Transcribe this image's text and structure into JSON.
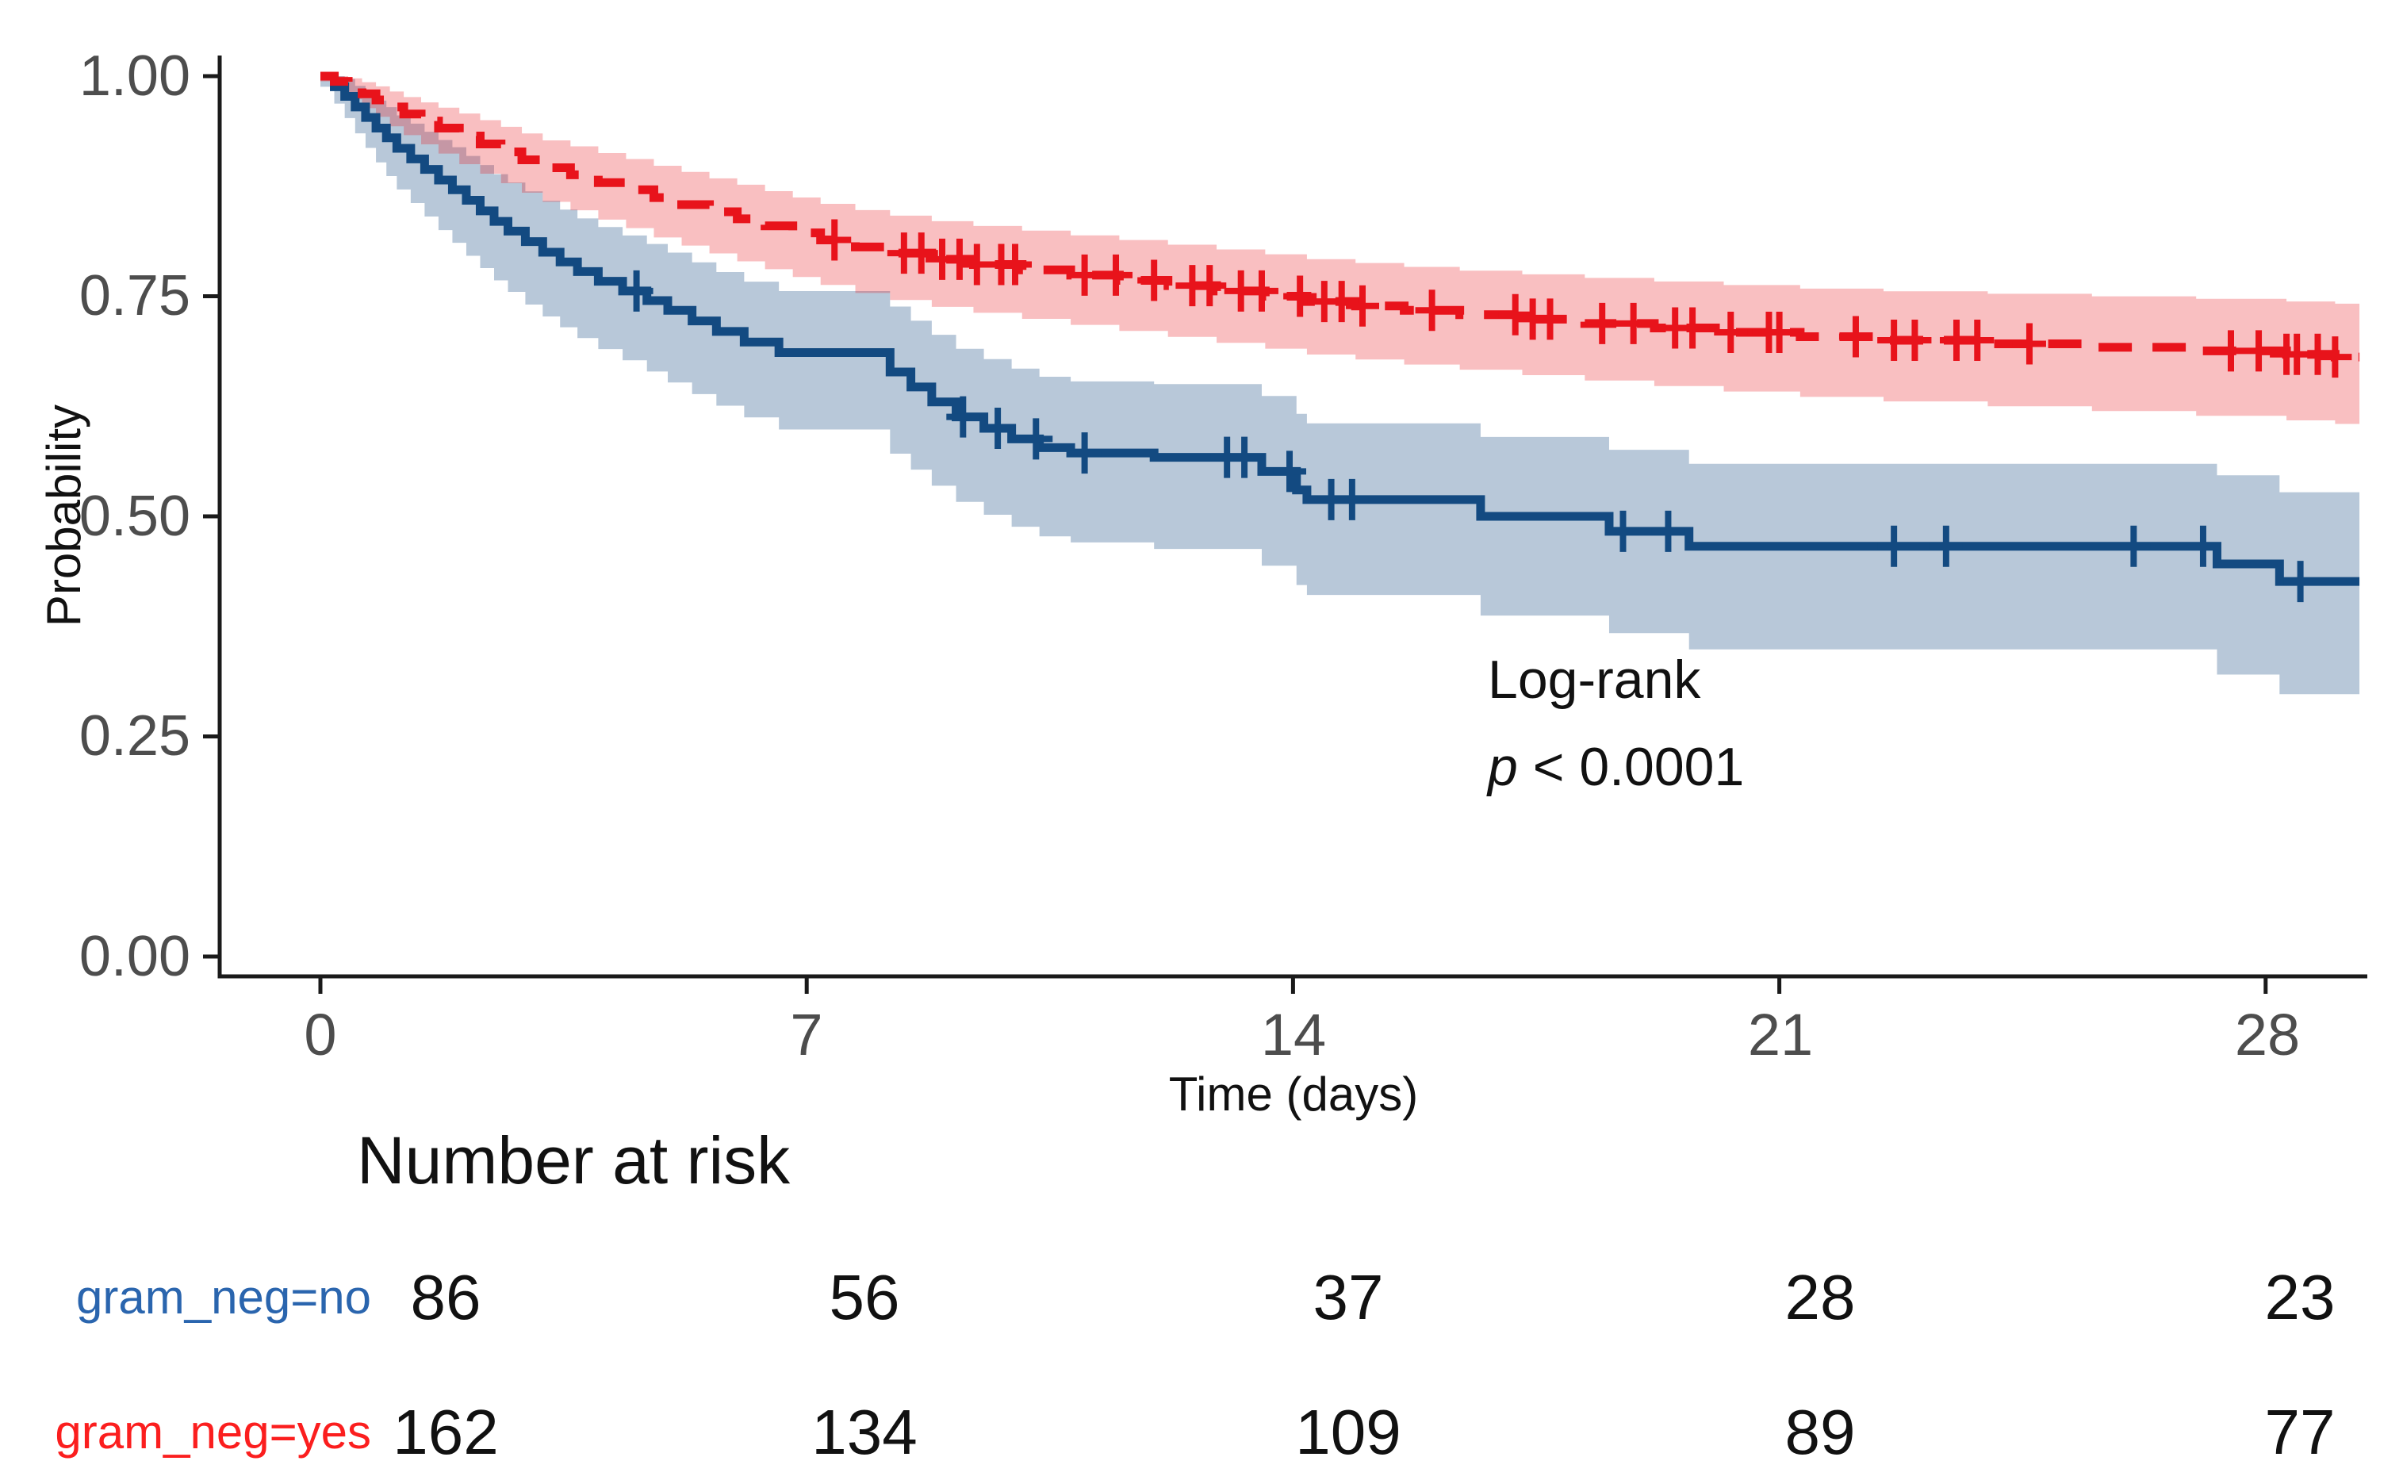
{
  "colors": {
    "background": "#ffffff",
    "axis": "#1a1a1a",
    "tick_label": "#4d4d4d",
    "blue_line": "#134a81",
    "red_line": "#e8131b",
    "blue_band": "rgba(19,74,129,0.30)",
    "red_band": "rgba(232,19,27,0.27)",
    "blue_label": "#2a65ae",
    "red_label": "#fb1e1e"
  },
  "chart_data": {
    "type": "line",
    "subtype": "kaplan-meier-step",
    "title": "",
    "xlabel": "Time (days)",
    "ylabel": "Probability",
    "xlim": [
      0,
      29.35
    ],
    "ylim": [
      0,
      1
    ],
    "grid": false,
    "legend_position": "none",
    "xticks": [
      0,
      7,
      14,
      21,
      28
    ],
    "yticks": [
      1.0,
      0.75,
      0.5,
      0.25,
      0.0
    ],
    "ytick_labels": [
      "1.00",
      "0.75",
      "0.50",
      "0.25",
      "0.00"
    ],
    "annotation": {
      "test_label": "Log-rank",
      "p_prefix": "p",
      "p_value": " < 0.0001"
    },
    "series": [
      {
        "name": "gram_neg=no",
        "line_style": "solid",
        "line_color": "#134a81",
        "band_color": "rgba(19,74,129,0.30)",
        "label_color": "#2a65ae",
        "steps": [
          [
            0,
            1.0
          ],
          [
            0.2,
            0.988
          ],
          [
            0.35,
            0.977
          ],
          [
            0.5,
            0.965
          ],
          [
            0.65,
            0.953
          ],
          [
            0.8,
            0.941
          ],
          [
            0.95,
            0.93
          ],
          [
            1.1,
            0.918
          ],
          [
            1.3,
            0.906
          ],
          [
            1.5,
            0.894
          ],
          [
            1.7,
            0.882
          ],
          [
            1.9,
            0.871
          ],
          [
            2.1,
            0.859
          ],
          [
            2.3,
            0.847
          ],
          [
            2.5,
            0.835
          ],
          [
            2.7,
            0.824
          ],
          [
            2.95,
            0.812
          ],
          [
            3.2,
            0.8
          ],
          [
            3.45,
            0.789
          ],
          [
            3.7,
            0.778
          ],
          [
            4.0,
            0.767
          ],
          [
            4.35,
            0.756
          ],
          [
            4.7,
            0.745
          ],
          [
            5.0,
            0.734
          ],
          [
            5.35,
            0.722
          ],
          [
            5.7,
            0.71
          ],
          [
            6.1,
            0.698
          ],
          [
            6.6,
            0.686
          ],
          [
            8.2,
            0.664
          ],
          [
            8.5,
            0.647
          ],
          [
            8.8,
            0.63
          ],
          [
            9.15,
            0.613
          ],
          [
            9.55,
            0.6
          ],
          [
            9.95,
            0.588
          ],
          [
            10.35,
            0.578
          ],
          [
            10.8,
            0.572
          ],
          [
            12.0,
            0.567
          ],
          [
            13.55,
            0.551
          ],
          [
            14.05,
            0.53
          ],
          [
            14.2,
            0.519
          ],
          [
            16.7,
            0.5
          ],
          [
            18.55,
            0.483
          ],
          [
            19.7,
            0.466
          ],
          [
            27.3,
            0.446
          ],
          [
            28.2,
            0.426
          ]
        ],
        "censor_times": [
          4.55,
          9.25,
          9.75,
          10.3,
          11.0,
          13.05,
          13.3,
          13.95,
          14.55,
          14.85,
          18.75,
          19.4,
          22.65,
          23.4,
          26.1,
          27.1,
          28.5
        ],
        "ci_halfwidth": [
          [
            0,
            0.012
          ],
          [
            0.5,
            0.03
          ],
          [
            1,
            0.045
          ],
          [
            2,
            0.062
          ],
          [
            3,
            0.072
          ],
          [
            5,
            0.082
          ],
          [
            8,
            0.092
          ],
          [
            10,
            0.1
          ],
          [
            14,
            0.108
          ],
          [
            18,
            0.115
          ],
          [
            22,
            0.12
          ],
          [
            29.35,
            0.128
          ]
        ]
      },
      {
        "name": "gram_neg=yes",
        "line_style": "dashed",
        "line_color": "#e8131b",
        "band_color": "rgba(232,19,27,0.27)",
        "label_color": "#fb1e1e",
        "steps": [
          [
            0,
            1.0
          ],
          [
            0.2,
            0.994
          ],
          [
            0.4,
            0.987
          ],
          [
            0.6,
            0.98
          ],
          [
            0.8,
            0.973
          ],
          [
            1.0,
            0.965
          ],
          [
            1.2,
            0.957
          ],
          [
            1.45,
            0.949
          ],
          [
            1.7,
            0.941
          ],
          [
            2.0,
            0.932
          ],
          [
            2.3,
            0.923
          ],
          [
            2.6,
            0.914
          ],
          [
            2.9,
            0.905
          ],
          [
            3.2,
            0.896
          ],
          [
            3.6,
            0.888
          ],
          [
            4.0,
            0.879
          ],
          [
            4.4,
            0.871
          ],
          [
            4.8,
            0.862
          ],
          [
            5.2,
            0.854
          ],
          [
            5.6,
            0.846
          ],
          [
            6.0,
            0.838
          ],
          [
            6.4,
            0.83
          ],
          [
            6.8,
            0.822
          ],
          [
            7.2,
            0.814
          ],
          [
            7.7,
            0.806
          ],
          [
            8.2,
            0.799
          ],
          [
            8.8,
            0.792
          ],
          [
            9.4,
            0.786
          ],
          [
            10.1,
            0.78
          ],
          [
            10.8,
            0.774
          ],
          [
            11.5,
            0.768
          ],
          [
            12.2,
            0.762
          ],
          [
            12.9,
            0.756
          ],
          [
            13.6,
            0.75
          ],
          [
            14.2,
            0.744
          ],
          [
            14.9,
            0.739
          ],
          [
            15.6,
            0.734
          ],
          [
            16.4,
            0.729
          ],
          [
            17.3,
            0.724
          ],
          [
            18.2,
            0.719
          ],
          [
            19.2,
            0.714
          ],
          [
            20.2,
            0.709
          ],
          [
            21.3,
            0.704
          ],
          [
            22.5,
            0.7
          ],
          [
            24.0,
            0.696
          ],
          [
            25.5,
            0.692
          ],
          [
            27.0,
            0.688
          ],
          [
            28.3,
            0.684
          ],
          [
            29.0,
            0.681
          ]
        ],
        "censor_times": [
          7.4,
          8.4,
          8.65,
          8.95,
          9.2,
          9.45,
          9.8,
          10.0,
          11.0,
          11.45,
          12.0,
          12.55,
          12.8,
          13.25,
          13.55,
          14.1,
          14.45,
          14.7,
          15.0,
          16.0,
          17.2,
          17.45,
          17.7,
          18.45,
          18.9,
          19.5,
          19.75,
          20.3,
          20.85,
          21.0,
          22.1,
          22.65,
          22.95,
          23.55,
          23.85,
          24.6,
          27.5,
          27.9,
          28.3,
          28.45,
          28.75,
          29.0
        ],
        "ci_halfwidth": [
          [
            0,
            0.006
          ],
          [
            0.5,
            0.015
          ],
          [
            1,
            0.022
          ],
          [
            2,
            0.032
          ],
          [
            3,
            0.038
          ],
          [
            5,
            0.046
          ],
          [
            8,
            0.053
          ],
          [
            12,
            0.058
          ],
          [
            16,
            0.062
          ],
          [
            20,
            0.067
          ],
          [
            24,
            0.071
          ],
          [
            29.35,
            0.076
          ]
        ]
      }
    ],
    "risk_table": {
      "title": "Number at risk",
      "times": [
        0,
        7,
        14,
        21,
        28
      ],
      "rows": [
        {
          "label": "gram_neg=no",
          "counts": [
            "86",
            "56",
            "37",
            "28",
            "23"
          ]
        },
        {
          "label": "gram_neg=yes",
          "counts": [
            "162",
            "134",
            "109",
            "89",
            "77"
          ]
        }
      ]
    }
  }
}
